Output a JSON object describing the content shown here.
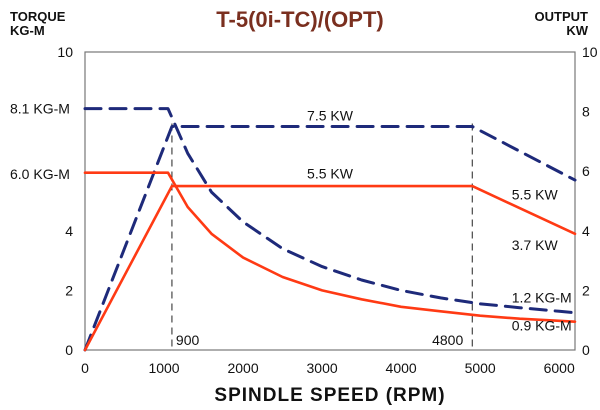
{
  "chart_data": {
    "type": "line",
    "title": "T-5(0i-TC)/(OPT)",
    "left_axis_title": [
      "TORQUE",
      "KG-M"
    ],
    "right_axis_title": [
      "OUTPUT",
      "KW"
    ],
    "xlabel": "SPINDLE   SPEED  (RPM)",
    "xlim": [
      0,
      6200
    ],
    "ylim": [
      0,
      10
    ],
    "right_ylim": [
      0,
      10
    ],
    "x_ticks": [
      0,
      1000,
      2000,
      3000,
      4000,
      5000,
      6000
    ],
    "y_ticks_left": [
      0,
      2,
      4,
      10
    ],
    "y_ticks_right": [
      0,
      2,
      4,
      6,
      8,
      10
    ],
    "left_value_labels": [
      {
        "text": "8.1 KG-M",
        "y": 8.1
      },
      {
        "text": "6.0 KG-M",
        "y": 5.9
      }
    ],
    "guides": [
      {
        "x": 1100,
        "label": "900"
      },
      {
        "x": 4900,
        "label": "4800"
      }
    ],
    "series": [
      {
        "style": "dashed",
        "color": "#1e2a7a",
        "points": [
          [
            0,
            8.1
          ],
          [
            1050,
            8.1
          ],
          [
            1300,
            6.6
          ],
          [
            1600,
            5.3
          ],
          [
            2000,
            4.3
          ],
          [
            2500,
            3.4
          ],
          [
            3000,
            2.8
          ],
          [
            3500,
            2.35
          ],
          [
            4000,
            2.0
          ],
          [
            4500,
            1.75
          ],
          [
            5000,
            1.55
          ],
          [
            5500,
            1.42
          ],
          [
            6000,
            1.3
          ],
          [
            6200,
            1.25
          ]
        ]
      },
      {
        "style": "dashed",
        "color": "#1e2a7a",
        "points": [
          [
            0,
            0
          ],
          [
            1100,
            7.5
          ],
          [
            4900,
            7.5
          ],
          [
            6200,
            5.7
          ]
        ]
      },
      {
        "style": "solid",
        "color": "#ff3a14",
        "points": [
          [
            0,
            5.95
          ],
          [
            1050,
            5.95
          ],
          [
            1300,
            4.8
          ],
          [
            1600,
            3.9
          ],
          [
            2000,
            3.1
          ],
          [
            2500,
            2.45
          ],
          [
            3000,
            2.0
          ],
          [
            3500,
            1.7
          ],
          [
            4000,
            1.45
          ],
          [
            4500,
            1.3
          ],
          [
            5000,
            1.15
          ],
          [
            5500,
            1.05
          ],
          [
            6000,
            0.98
          ],
          [
            6200,
            0.95
          ]
        ]
      },
      {
        "style": "solid",
        "color": "#ff3a14",
        "points": [
          [
            0,
            0
          ],
          [
            1100,
            5.5
          ],
          [
            4900,
            5.5
          ],
          [
            6200,
            3.9
          ]
        ]
      }
    ],
    "annotations": [
      {
        "text": "7.5 KW",
        "x": 3100,
        "y": 7.7
      },
      {
        "text": "5.5 KW",
        "x": 3100,
        "y": 5.75
      },
      {
        "text": "5.5 KW",
        "x": 5400,
        "y": 5.05
      },
      {
        "text": "3.7 KW",
        "x": 5400,
        "y": 3.35
      },
      {
        "text": "1.2 KG-M",
        "x": 5400,
        "y": 1.6
      },
      {
        "text": "0.9 KG-M",
        "x": 5400,
        "y": 0.65
      }
    ]
  }
}
